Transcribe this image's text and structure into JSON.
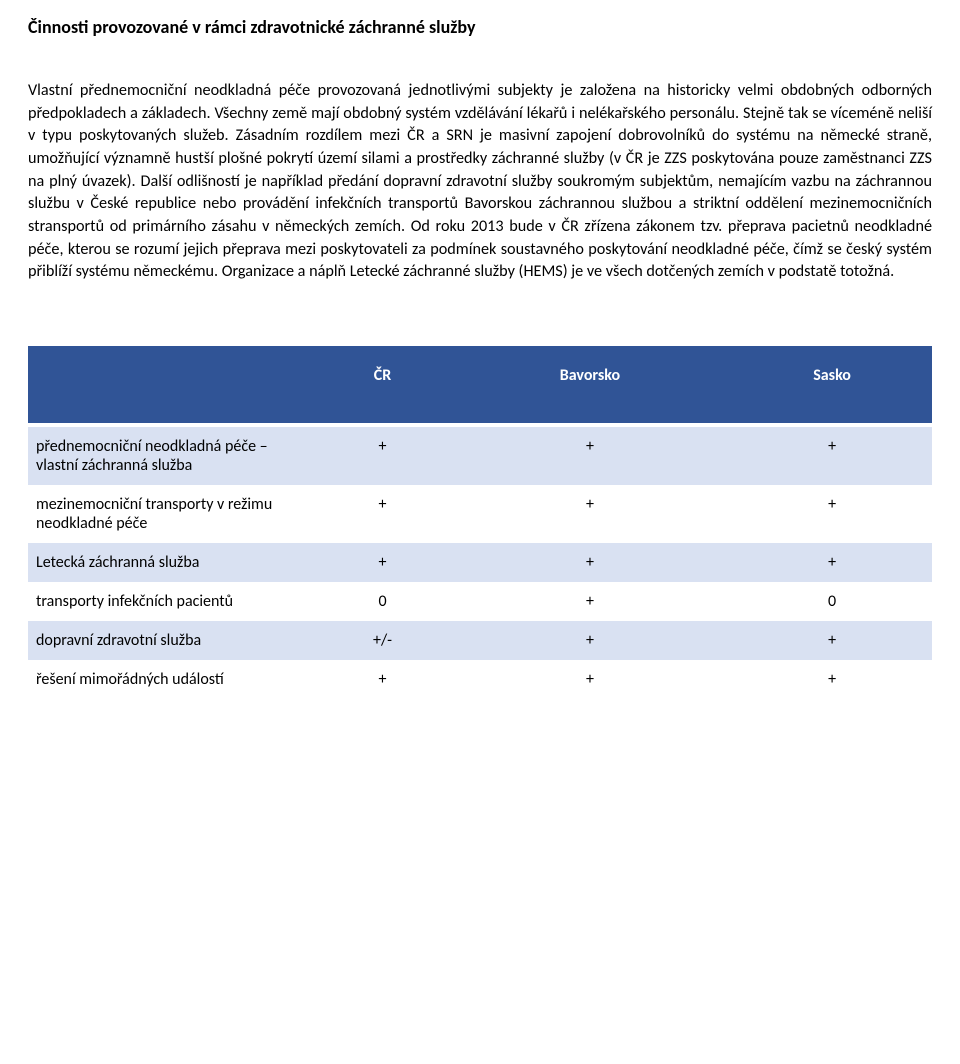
{
  "title": "Činnosti provozované v rámci zdravotnické záchranné služby",
  "paragraph": "Vlastní přednemocniční neodkladná péče provozovaná jednotlivými subjekty je založena na historicky velmi obdobných odborných předpokladech a základech. Všechny země mají obdobný systém vzdělávání lékařů i nelékařského personálu. Stejně tak se víceméně neliší v typu poskytovaných služeb. Zásadním rozdílem mezi ČR a SRN je masivní zapojení dobrovolníků do systému na německé straně, umožňující významně hustší plošné pokrytí území silami a prostředky záchranné služby (v ČR je ZZS poskytována pouze zaměstnanci ZZS na plný úvazek). Další odlišností je například předání dopravní zdravotní služby soukromým subjektům, nemajícím vazbu na záchrannou službu v České republice nebo provádění infekčních transportů Bavorskou záchrannou službou a striktní oddělení mezinemocničních stransportů od primárního zásahu v německých zemích. Od roku 2013 bude v ČR zřízena zákonem tzv. přeprava pacietnů neodkladné péče, kterou se rozumí jejich přeprava mezi poskytovateli za podmínek soustavného poskytování neodkladné péče, čímž se český systém přiblíží systému německému. Organizace a náplň Letecké záchranné služby (HEMS) je ve všech dotčených zemích v podstatě totožná.",
  "table": {
    "header_bg": "#305496",
    "header_fg": "#ffffff",
    "band_a_bg": "#d9e1f2",
    "band_b_bg": "#ffffff",
    "columns": [
      "",
      "ČR",
      "Bavorsko",
      "Sasko"
    ],
    "rows": [
      {
        "label": "přednemocniční neodkladná péče – vlastní záchranná služba",
        "cr": "+",
        "bav": "+",
        "sas": "+"
      },
      {
        "label": "mezinemocniční transporty v režimu neodkladné péče",
        "cr": "+",
        "bav": "+",
        "sas": "+"
      },
      {
        "label": "Letecká záchranná služba",
        "cr": "+",
        "bav": "+",
        "sas": "+"
      },
      {
        "label": "transporty infekčních pacientů",
        "cr": "0",
        "bav": "+",
        "sas": "0"
      },
      {
        "label": "dopravní zdravotní služba",
        "cr": "+/-",
        "bav": "+",
        "sas": "+"
      },
      {
        "label": "řešení mimořádných událostí",
        "cr": "+",
        "bav": "+",
        "sas": "+"
      }
    ]
  }
}
